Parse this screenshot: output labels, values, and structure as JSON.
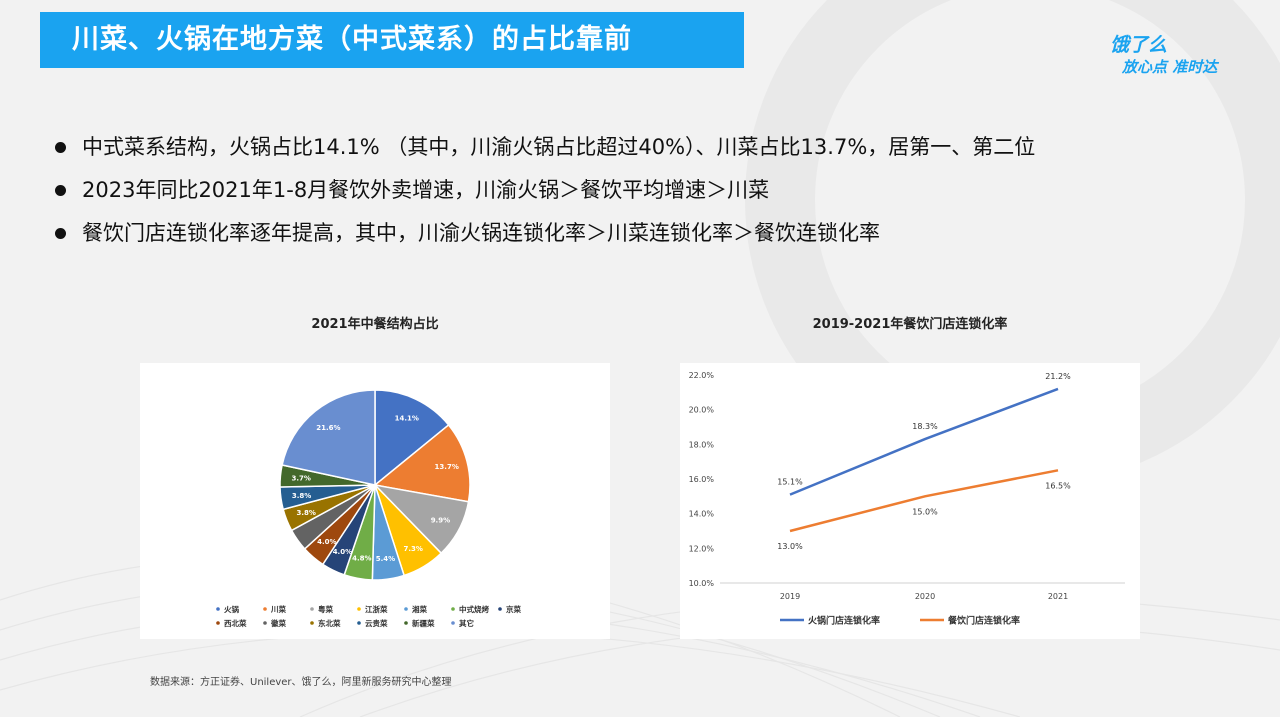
{
  "header": {
    "title": "川菜、火锅在地方菜（中式菜系）的占比靠前"
  },
  "brand": {
    "line1": "饿了么",
    "line2": "放心点 准时达"
  },
  "bullets": [
    "中式菜系结构，火锅占比14.1% （其中，川渝火锅占比超过40%）、川菜占比13.7%，居第一、第二位",
    "2023年同比2021年1-8月餐饮外卖增速，川渝火锅＞餐饮平均增速＞川菜",
    "餐饮门店连锁化率逐年提高，其中，川渝火锅连锁化率＞川菜连锁化率＞餐饮连锁化率"
  ],
  "source": "数据来源：方正证券、Unilever、饿了么，阿里新服务研究中心整理",
  "chart_data": [
    {
      "type": "pie",
      "title": "2021年中餐结构占比",
      "categories": [
        "火锅",
        "川菜",
        "粤菜",
        "江浙菜",
        "湘菜",
        "中式烧烤",
        "京菜",
        "西北菜",
        "徽菜",
        "东北菜",
        "云贵菜",
        "新疆菜",
        "其它"
      ],
      "values": [
        14.1,
        13.7,
        9.9,
        7.3,
        5.4,
        4.8,
        4.0,
        4.0,
        3.8,
        3.8,
        3.8,
        3.7,
        21.6
      ],
      "labels": [
        "14.1%",
        "13.7%",
        "9.9%",
        "7.3%",
        "5.4%",
        "4.8%",
        "4.0%",
        "4.0%",
        "",
        "3.8%",
        "3.8%",
        "3.7%",
        "21.6%"
      ],
      "colors": [
        "#4472c4",
        "#ed7d31",
        "#a5a5a5",
        "#ffc000",
        "#5b9bd5",
        "#70ad47",
        "#264478",
        "#9e480e",
        "#636363",
        "#997300",
        "#255e91",
        "#43682b",
        "#698ed0"
      ],
      "legend": "bottom"
    },
    {
      "type": "line",
      "title": "2019-2021年餐饮门店连锁化率",
      "x": [
        "2019",
        "2020",
        "2021"
      ],
      "series": [
        {
          "name": "火锅门店连锁化率",
          "values": [
            15.1,
            18.3,
            21.2
          ],
          "labels": [
            "15.1%",
            "18.3%",
            "21.2%"
          ],
          "color": "#4472c4"
        },
        {
          "name": "餐饮门店连锁化率",
          "values": [
            13.0,
            15.0,
            16.5
          ],
          "labels": [
            "13.0%",
            "15.0%",
            "16.5%"
          ],
          "color": "#ed7d31"
        }
      ],
      "ylim": [
        10,
        22
      ],
      "yticks": [
        "10.0%",
        "12.0%",
        "14.0%",
        "16.0%",
        "18.0%",
        "20.0%",
        "22.0%"
      ],
      "legend": "bottom"
    }
  ]
}
